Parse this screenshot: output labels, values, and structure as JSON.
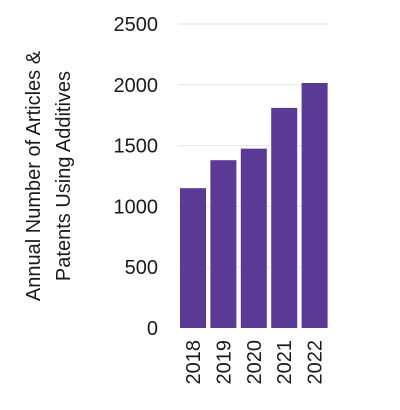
{
  "chart_data": {
    "type": "bar",
    "categories": [
      "2018",
      "2019",
      "2020",
      "2021",
      "2022"
    ],
    "values": [
      1150,
      1380,
      1475,
      1810,
      2015
    ],
    "title": "",
    "xlabel": "",
    "ylabel_lines": [
      "Annual Number of Articles &",
      "Patents Using Additives"
    ],
    "ylim": [
      0,
      2500
    ],
    "yticks": [
      0,
      500,
      1000,
      1500,
      2000,
      2500
    ],
    "grid": true,
    "bar_color": "#5b3a96"
  }
}
